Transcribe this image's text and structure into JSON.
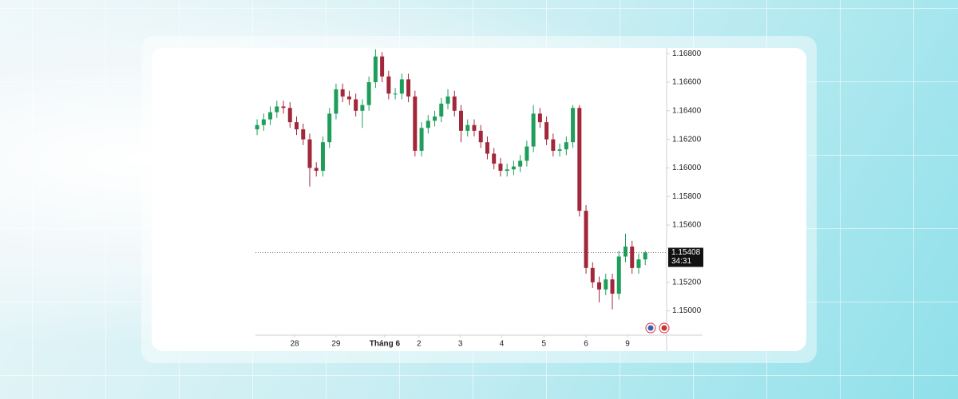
{
  "chart_data": {
    "type": "candlestick",
    "open": [
      1.1627,
      1.163,
      1.1634,
      1.1639,
      1.1643,
      1.1642,
      1.1632,
      1.1627,
      1.162,
      1.16,
      1.1598,
      1.1618,
      1.1638,
      1.1655,
      1.165,
      1.1648,
      1.164,
      1.1644,
      1.166,
      1.1678,
      1.1664,
      1.1652,
      1.1652,
      1.1662,
      1.165,
      1.1612,
      1.1628,
      1.1633,
      1.1636,
      1.1645,
      1.165,
      1.164,
      1.1626,
      1.163,
      1.1626,
      1.1618,
      1.161,
      1.1603,
      1.1598,
      1.1599,
      1.1601,
      1.1605,
      1.1615,
      1.1638,
      1.1632,
      1.162,
      1.1612,
      1.1613,
      1.1618,
      1.1642,
      1.157,
      1.153,
      1.152,
      1.1515,
      1.1522,
      1.1512,
      1.1538,
      1.1545,
      1.153,
      1.1536
    ],
    "high": [
      1.1634,
      1.1638,
      1.1643,
      1.1647,
      1.1647,
      1.1646,
      1.1636,
      1.1631,
      1.1624,
      1.1604,
      1.1622,
      1.1642,
      1.1659,
      1.1659,
      1.1654,
      1.1652,
      1.1648,
      1.1664,
      1.1683,
      1.1681,
      1.1668,
      1.1656,
      1.1666,
      1.1666,
      1.1654,
      1.1632,
      1.1637,
      1.164,
      1.1649,
      1.1655,
      1.1654,
      1.1644,
      1.1634,
      1.1634,
      1.163,
      1.1622,
      1.1614,
      1.1607,
      1.1603,
      1.1605,
      1.1609,
      1.1619,
      1.1644,
      1.1642,
      1.1636,
      1.1624,
      1.1617,
      1.1622,
      1.1644,
      1.1644,
      1.1574,
      1.1534,
      1.1524,
      1.1526,
      1.1526,
      1.1542,
      1.1554,
      1.1549,
      1.154,
      1.1542
    ],
    "low": [
      1.1623,
      1.1626,
      1.163,
      1.1635,
      1.1638,
      1.1628,
      1.1623,
      1.1616,
      1.1587,
      1.1594,
      1.1594,
      1.1614,
      1.1634,
      1.1646,
      1.1644,
      1.1636,
      1.1628,
      1.164,
      1.1656,
      1.166,
      1.1648,
      1.1648,
      1.1648,
      1.1646,
      1.1608,
      1.1608,
      1.1624,
      1.1629,
      1.1632,
      1.1641,
      1.1636,
      1.1618,
      1.1622,
      1.1622,
      1.1614,
      1.1606,
      1.1599,
      1.1594,
      1.1594,
      1.1595,
      1.1597,
      1.1601,
      1.1611,
      1.1628,
      1.1616,
      1.1608,
      1.1608,
      1.1609,
      1.1614,
      1.1566,
      1.1526,
      1.1516,
      1.1506,
      1.1511,
      1.1501,
      1.1508,
      1.1534,
      1.1526,
      1.1526,
      1.1532
    ],
    "close": [
      1.163,
      1.1634,
      1.1639,
      1.1643,
      1.1642,
      1.1632,
      1.1627,
      1.162,
      1.16,
      1.1598,
      1.1618,
      1.1638,
      1.1655,
      1.165,
      1.1648,
      1.164,
      1.1644,
      1.166,
      1.1678,
      1.1664,
      1.1652,
      1.1652,
      1.1662,
      1.165,
      1.1612,
      1.1628,
      1.1633,
      1.1636,
      1.1645,
      1.165,
      1.164,
      1.1626,
      1.163,
      1.1626,
      1.1618,
      1.161,
      1.1603,
      1.1598,
      1.1599,
      1.1601,
      1.1605,
      1.1615,
      1.1638,
      1.1632,
      1.162,
      1.1612,
      1.1613,
      1.1618,
      1.1642,
      1.157,
      1.153,
      1.152,
      1.1515,
      1.1522,
      1.1512,
      1.1538,
      1.1545,
      1.153,
      1.1536,
      1.15408
    ],
    "up_color": "#1e9e5a",
    "down_color": "#a3273a",
    "xlim": [
      -0.25,
      62.25
    ],
    "xticks": [
      {
        "value": 5.7,
        "label": "28"
      },
      {
        "value": 12.0,
        "label": "29"
      },
      {
        "value": 19.4,
        "label": "Tháng 6"
      },
      {
        "value": 24.6,
        "label": "2"
      },
      {
        "value": 30.9,
        "label": "3"
      },
      {
        "value": 37.2,
        "label": "4"
      },
      {
        "value": 43.6,
        "label": "5"
      },
      {
        "value": 50.0,
        "label": "6"
      },
      {
        "value": 56.3,
        "label": "9"
      }
    ],
    "ylim": [
      1.1483,
      1.1684
    ],
    "yticks": [
      {
        "value": 1.15,
        "label": "1.15000"
      },
      {
        "value": 1.152,
        "label": "1.15200"
      },
      {
        "value": 1.156,
        "label": "1.15600"
      },
      {
        "value": 1.158,
        "label": "1.15800"
      },
      {
        "value": 1.16,
        "label": "1.16000"
      },
      {
        "value": 1.162,
        "label": "1.16200"
      },
      {
        "value": 1.164,
        "label": "1.16400"
      },
      {
        "value": 1.166,
        "label": "1.16600"
      },
      {
        "value": 1.168,
        "label": "1.16800"
      }
    ],
    "last_price": {
      "value": 1.15408,
      "label": "1.15408"
    },
    "countdown": "34:31"
  }
}
